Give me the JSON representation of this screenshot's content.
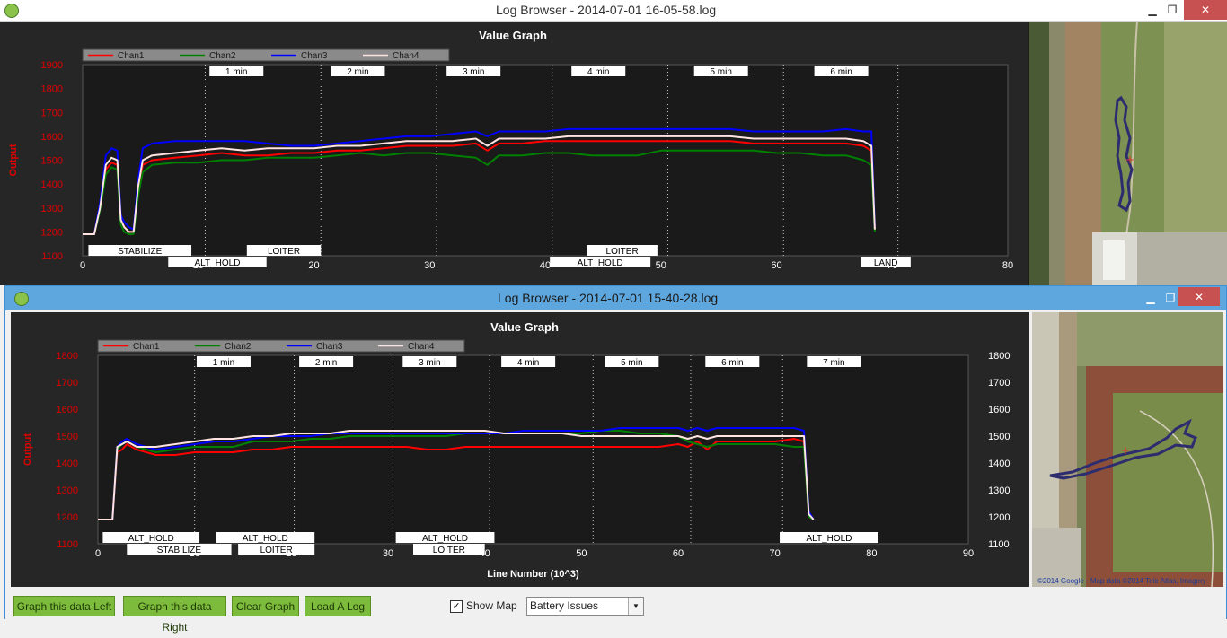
{
  "back_window": {
    "title": "Log Browser - 2014-07-01 16-05-58.log",
    "graph": {
      "title": "Value Graph",
      "ylabel": "Output",
      "legend": [
        "Chan1",
        "Chan2",
        "Chan3",
        "Chan4"
      ],
      "time_markers": [
        {
          "label": "1 min",
          "x": 10.6
        },
        {
          "label": "2 min",
          "x": 20.6
        },
        {
          "label": "3 min",
          "x": 30.6
        },
        {
          "label": "4 min",
          "x": 40.6
        },
        {
          "label": "5 min",
          "x": 50.6
        },
        {
          "label": "6 min",
          "x": 60.6
        },
        {
          "label": "",
          "x": 70.5
        }
      ],
      "marker_label_centers": [
        13.3,
        23.8,
        33.8,
        44.6,
        55.2,
        65.6
      ],
      "modes_upper": [
        {
          "label": "STABILIZE",
          "from": 0.5,
          "to": 9.4
        },
        {
          "label": "LOITER",
          "from": 14.2,
          "to": 20.6
        },
        {
          "label": "LOITER",
          "from": 43.6,
          "to": 49.7
        }
      ],
      "modes_lower": [
        {
          "label": "ALT_HOLD",
          "from": 7.4,
          "to": 15.9
        },
        {
          "label": "ALT_HOLD",
          "from": 40.4,
          "to": 49.1
        },
        {
          "label": "LAND",
          "from": 67.3,
          "to": 71.6
        }
      ]
    }
  },
  "front_window": {
    "title": "Log Browser - 2014-07-01 15-40-28.log",
    "graph": {
      "title": "Value Graph",
      "ylabel": "Output",
      "xlabel": "Line Number (10^3)",
      "legend": [
        "Chan1",
        "Chan2",
        "Chan3",
        "Chan4"
      ],
      "time_markers": [
        {
          "label": "1 min",
          "x": 10
        },
        {
          "label": "2 min",
          "x": 20.3
        },
        {
          "label": "3 min",
          "x": 30.5
        },
        {
          "label": "4 min",
          "x": 40.5
        },
        {
          "label": "5 min",
          "x": 51.2
        },
        {
          "label": "6 min",
          "x": 61.3
        },
        {
          "label": "7 min",
          "x": 70.8
        }
      ],
      "marker_label_centers": [
        13,
        23.6,
        34.3,
        44.5,
        55.2,
        65.6,
        76.1
      ],
      "modes_upper": [
        {
          "label": "ALT_HOLD",
          "from": 0.5,
          "to": 10.5
        },
        {
          "label": "ALT_HOLD",
          "from": 12.2,
          "to": 22.4
        },
        {
          "label": "ALT_HOLD",
          "from": 30.8,
          "to": 41
        },
        {
          "label": "ALT_HOLD",
          "from": 70.5,
          "to": 80.7
        }
      ],
      "modes_lower": [
        {
          "label": "STABILIZE",
          "from": 3,
          "to": 13.8
        },
        {
          "label": "LOITER",
          "from": 14.5,
          "to": 22.4
        },
        {
          "label": "LOITER",
          "from": 32.6,
          "to": 40
        }
      ]
    },
    "map_credit": "©2014 Google - Map data ©2014 Tele Atlas, Imagery"
  },
  "bottom_bar": {
    "graph_left": "Graph this data Left",
    "graph_right": "Graph this data Right",
    "clear_graph": "Clear Graph",
    "load_log": "Load A Log",
    "show_map_label": "Show Map",
    "show_map_checked": true,
    "dropdown_value": "Battery Issues"
  },
  "window_buttons": {
    "minimize": "▁",
    "maximize": "❐",
    "close": "✕"
  },
  "chart_data": [
    {
      "type": "line",
      "title": "Value Graph",
      "ylabel": "Output",
      "xlim": [
        0,
        80
      ],
      "ylim": [
        1100,
        1900
      ],
      "x_ticks": [
        0,
        10,
        20,
        30,
        40,
        50,
        60,
        70,
        80
      ],
      "y_ticks": [
        1100,
        1200,
        1300,
        1400,
        1500,
        1600,
        1700,
        1800,
        1900
      ],
      "x": [
        0,
        0.5,
        1,
        1.5,
        2,
        2.5,
        3,
        3.3,
        3.6,
        4,
        4.4,
        4.8,
        5.2,
        6,
        8,
        10,
        12,
        14,
        16,
        18,
        20,
        22,
        24,
        26,
        28,
        30,
        32,
        34,
        35,
        36,
        38,
        40,
        42,
        44,
        46,
        48,
        50,
        52,
        54,
        56,
        58,
        60,
        62,
        64,
        66,
        67.5,
        68.2,
        68.5
      ],
      "series": [
        {
          "name": "Chan1",
          "color": "#ff0000",
          "values": [
            1190,
            1190,
            1190,
            1300,
            1460,
            1490,
            1480,
            1250,
            1220,
            1200,
            1200,
            1380,
            1480,
            1500,
            1510,
            1520,
            1530,
            1520,
            1520,
            1530,
            1530,
            1540,
            1540,
            1550,
            1560,
            1560,
            1560,
            1570,
            1540,
            1570,
            1570,
            1580,
            1580,
            1580,
            1580,
            1580,
            1580,
            1580,
            1580,
            1580,
            1570,
            1570,
            1570,
            1570,
            1570,
            1560,
            1540,
            1210
          ]
        },
        {
          "name": "Chan2",
          "color": "#008000",
          "values": [
            1190,
            1190,
            1190,
            1290,
            1440,
            1470,
            1460,
            1230,
            1200,
            1190,
            1190,
            1350,
            1450,
            1480,
            1490,
            1490,
            1500,
            1500,
            1510,
            1510,
            1510,
            1520,
            1530,
            1520,
            1530,
            1530,
            1520,
            1510,
            1480,
            1520,
            1520,
            1530,
            1530,
            1520,
            1520,
            1520,
            1540,
            1540,
            1540,
            1540,
            1540,
            1530,
            1530,
            1520,
            1520,
            1500,
            1480,
            1200
          ]
        },
        {
          "name": "Chan3",
          "color": "#0000ff",
          "values": [
            1190,
            1190,
            1190,
            1320,
            1520,
            1550,
            1540,
            1270,
            1240,
            1220,
            1210,
            1420,
            1550,
            1570,
            1580,
            1580,
            1580,
            1580,
            1570,
            1560,
            1560,
            1570,
            1580,
            1590,
            1600,
            1600,
            1610,
            1620,
            1600,
            1620,
            1620,
            1620,
            1630,
            1630,
            1630,
            1630,
            1630,
            1630,
            1630,
            1630,
            1620,
            1620,
            1620,
            1620,
            1630,
            1620,
            1620,
            1220
          ]
        },
        {
          "name": "Chan4",
          "color": "#ffe4e1",
          "values": [
            1190,
            1190,
            1190,
            1300,
            1480,
            1510,
            1500,
            1250,
            1220,
            1200,
            1200,
            1390,
            1500,
            1520,
            1530,
            1540,
            1550,
            1540,
            1550,
            1550,
            1550,
            1560,
            1560,
            1570,
            1580,
            1580,
            1580,
            1590,
            1560,
            1590,
            1590,
            1590,
            1600,
            1600,
            1600,
            1600,
            1600,
            1600,
            1600,
            1600,
            1590,
            1590,
            1590,
            1590,
            1590,
            1580,
            1560,
            1210
          ]
        }
      ]
    },
    {
      "type": "line",
      "title": "Value Graph",
      "xlabel": "Line Number (10^3)",
      "ylabel": "Output",
      "xlim": [
        0,
        90
      ],
      "ylim": [
        1100,
        1800
      ],
      "x_ticks": [
        0,
        10,
        20,
        30,
        40,
        50,
        60,
        70,
        80,
        90
      ],
      "y_ticks": [
        1100,
        1200,
        1300,
        1400,
        1500,
        1600,
        1700,
        1800
      ],
      "x": [
        0,
        0.5,
        1,
        1.5,
        2,
        2.5,
        3,
        4,
        6,
        8,
        10,
        12,
        14,
        16,
        18,
        20,
        22,
        24,
        26,
        28,
        30,
        32,
        34,
        36,
        38,
        40,
        42,
        44,
        46,
        48,
        50,
        52,
        54,
        56,
        58,
        60,
        61,
        62,
        63,
        64,
        66,
        68,
        70,
        72,
        73,
        73.5,
        74
      ],
      "series": [
        {
          "name": "Chan1",
          "color": "#ff0000",
          "values": [
            1190,
            1190,
            1190,
            1190,
            1440,
            1450,
            1470,
            1450,
            1430,
            1430,
            1440,
            1440,
            1440,
            1450,
            1450,
            1460,
            1460,
            1460,
            1460,
            1460,
            1460,
            1460,
            1450,
            1450,
            1460,
            1460,
            1460,
            1460,
            1460,
            1460,
            1460,
            1460,
            1460,
            1460,
            1460,
            1470,
            1460,
            1480,
            1450,
            1480,
            1480,
            1480,
            1480,
            1490,
            1480,
            1200,
            1190
          ]
        },
        {
          "name": "Chan2",
          "color": "#008000",
          "values": [
            1190,
            1190,
            1190,
            1190,
            1450,
            1470,
            1480,
            1460,
            1440,
            1450,
            1460,
            1460,
            1460,
            1480,
            1480,
            1480,
            1490,
            1490,
            1500,
            1500,
            1500,
            1500,
            1500,
            1500,
            1510,
            1510,
            1510,
            1510,
            1510,
            1510,
            1510,
            1520,
            1520,
            1510,
            1510,
            1500,
            1480,
            1470,
            1460,
            1470,
            1470,
            1470,
            1470,
            1460,
            1460,
            1200,
            1190
          ]
        },
        {
          "name": "Chan3",
          "color": "#0000ff",
          "values": [
            1190,
            1190,
            1190,
            1190,
            1460,
            1480,
            1490,
            1470,
            1450,
            1460,
            1470,
            1480,
            1480,
            1490,
            1500,
            1500,
            1500,
            1510,
            1510,
            1510,
            1510,
            1510,
            1510,
            1510,
            1510,
            1510,
            1510,
            1520,
            1520,
            1520,
            1520,
            1520,
            1530,
            1530,
            1530,
            1530,
            1520,
            1530,
            1520,
            1530,
            1530,
            1530,
            1530,
            1530,
            1520,
            1220,
            1190
          ]
        },
        {
          "name": "Chan4",
          "color": "#ffe4e1",
          "values": [
            1190,
            1190,
            1190,
            1190,
            1460,
            1470,
            1480,
            1460,
            1460,
            1470,
            1480,
            1490,
            1490,
            1500,
            1500,
            1510,
            1510,
            1510,
            1520,
            1520,
            1520,
            1520,
            1520,
            1520,
            1520,
            1520,
            1510,
            1510,
            1510,
            1510,
            1500,
            1500,
            1500,
            1500,
            1500,
            1500,
            1490,
            1500,
            1490,
            1500,
            1500,
            1500,
            1500,
            1500,
            1500,
            1210,
            1190
          ]
        }
      ]
    }
  ]
}
